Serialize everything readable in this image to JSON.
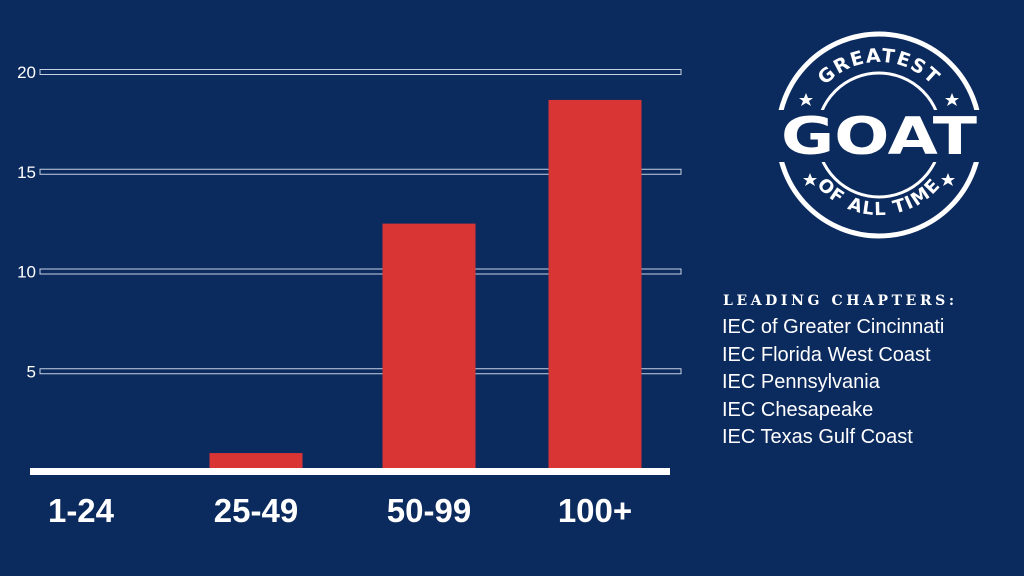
{
  "chart_data": {
    "type": "bar",
    "categories": [
      "1-24",
      "25-49",
      "50-99",
      "100+"
    ],
    "values": [
      0,
      0.9,
      12.4,
      18.6
    ],
    "ylim": [
      0,
      20
    ],
    "yticks": [
      5,
      10,
      15,
      20
    ],
    "title": "",
    "xlabel": "",
    "ylabel": "",
    "grid": true,
    "bar_color": "#d93535",
    "grid_color": "#c8d2e6",
    "axis_color": "#ffffff"
  },
  "logo": {
    "top_text": "GREATEST",
    "main_text": "GOAT",
    "bottom_text": "OF ALL TIME",
    "star_icon": "star-icon"
  },
  "leading": {
    "title": "LEADING CHAPTERS:",
    "chapters": [
      "IEC of Greater Cincinnati",
      "IEC Florida West Coast",
      "IEC Pennsylvania",
      "IEC Chesapeake",
      "IEC Texas Gulf Coast"
    ]
  },
  "colors": {
    "background": "#0b2a5e",
    "text": "#ffffff"
  }
}
